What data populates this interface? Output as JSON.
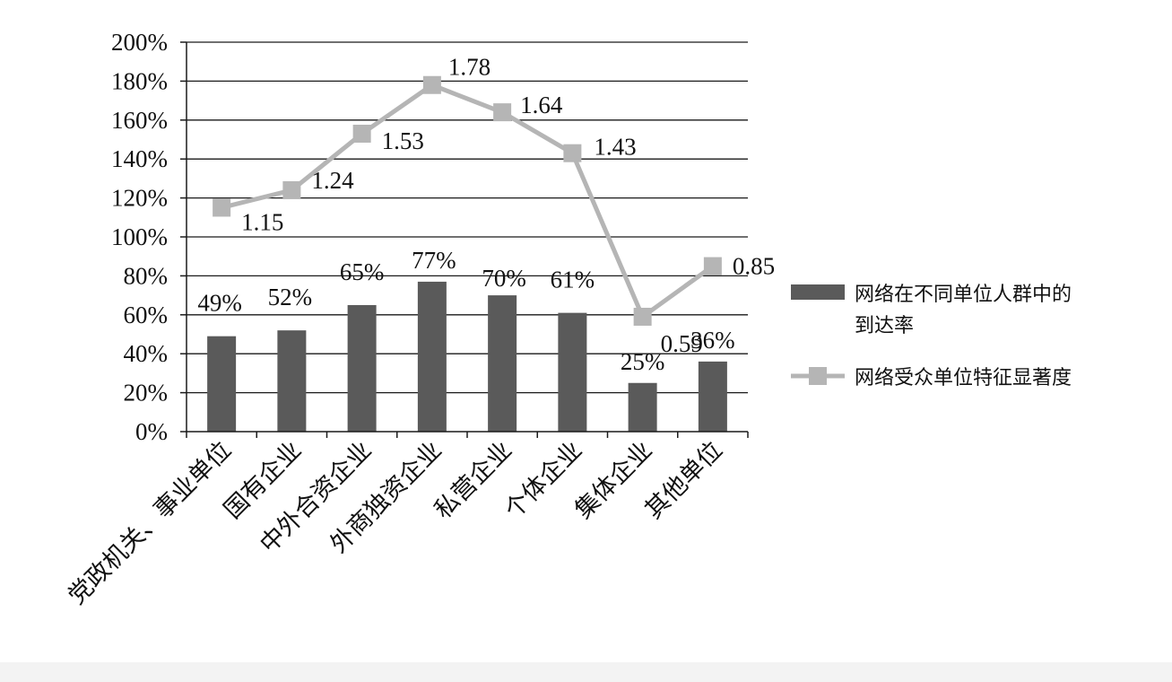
{
  "chart_data": {
    "type": "bar",
    "categories": [
      "党政机关、事业单位",
      "国有企业",
      "中外合资企业",
      "外商独资企业",
      "私营企业",
      "个体企业",
      "集体企业",
      "其他单位"
    ],
    "y_ticks": [
      "0%",
      "20%",
      "40%",
      "60%",
      "80%",
      "100%",
      "120%",
      "140%",
      "160%",
      "180%",
      "200%"
    ],
    "ylim": [
      0,
      2.0
    ],
    "grid": true,
    "legend_position": "right",
    "series": [
      {
        "name": "网络在不同单位人群中的到达率",
        "legend_lines": [
          "网络在不同单位人群中的",
          "到达率"
        ],
        "type": "bar",
        "color": "#5a5a5a",
        "values": [
          0.49,
          0.52,
          0.65,
          0.77,
          0.7,
          0.61,
          0.25,
          0.36
        ],
        "labels": [
          "49%",
          "52%",
          "65%",
          "77%",
          "70%",
          "61%",
          "25%",
          "36%"
        ]
      },
      {
        "name": "网络受众单位特征显著度",
        "legend_lines": [
          "网络受众单位特征显著度"
        ],
        "type": "line",
        "color": "#b5b5b5",
        "marker": "square",
        "values": [
          1.15,
          1.24,
          1.53,
          1.78,
          1.64,
          1.43,
          0.59,
          0.85
        ],
        "labels": [
          "1.15",
          "1.24",
          "1.53",
          "1.78",
          "1.64",
          "1.43",
          "0.59",
          "0.85"
        ]
      }
    ]
  }
}
